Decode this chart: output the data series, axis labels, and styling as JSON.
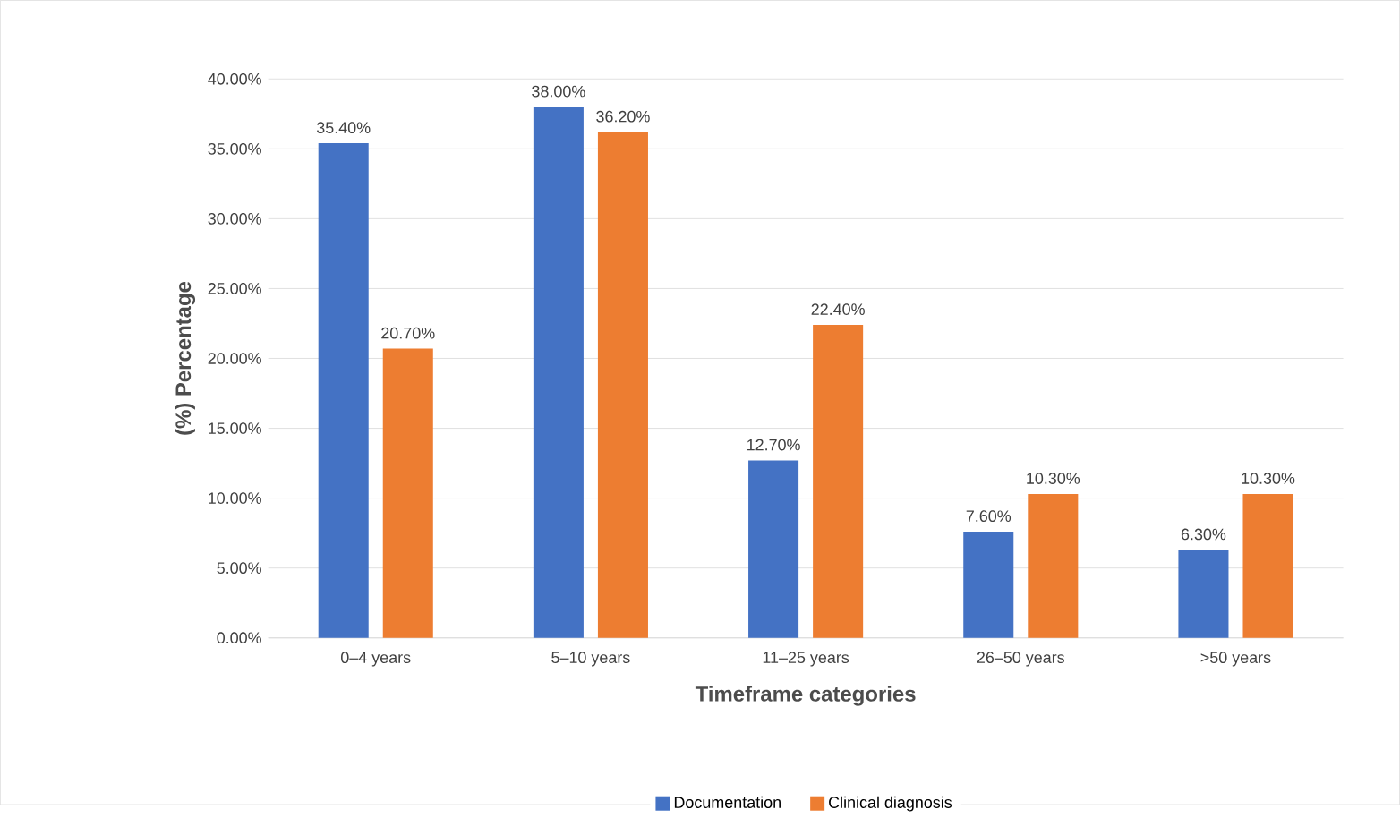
{
  "chart_data": {
    "type": "bar",
    "xlabel": "Timeframe categories",
    "ylabel": "(%) Percentage",
    "categories": [
      "0–4 years",
      "5–10 years",
      "11–25 years",
      "26–50 years",
      ">50 years"
    ],
    "series": [
      {
        "name": "Documentation",
        "color": "#4472c4",
        "values": [
          35.4,
          38.0,
          12.7,
          7.6,
          6.3
        ],
        "value_labels": [
          "35.40%",
          "38.00%",
          "12.70%",
          "7.60%",
          "6.30%"
        ]
      },
      {
        "name": "Clinical diagnosis",
        "color": "#ed7d31",
        "values": [
          20.7,
          36.2,
          22.4,
          10.3,
          10.3
        ],
        "value_labels": [
          "20.70%",
          "36.20%",
          "22.40%",
          "10.30%",
          "10.30%"
        ]
      }
    ],
    "ylim": [
      0,
      40
    ],
    "yticks": [
      {
        "value": 0,
        "label": "0.00%"
      },
      {
        "value": 5,
        "label": "5.00%"
      },
      {
        "value": 10,
        "label": "10.00%"
      },
      {
        "value": 15,
        "label": "15.00%"
      },
      {
        "value": 20,
        "label": "20.00%"
      },
      {
        "value": 25,
        "label": "25.00%"
      },
      {
        "value": 30,
        "label": "30.00%"
      },
      {
        "value": 35,
        "label": "35.00%"
      },
      {
        "value": 40,
        "label": "40.00%"
      }
    ],
    "grid": "y",
    "legend": "bottom"
  }
}
